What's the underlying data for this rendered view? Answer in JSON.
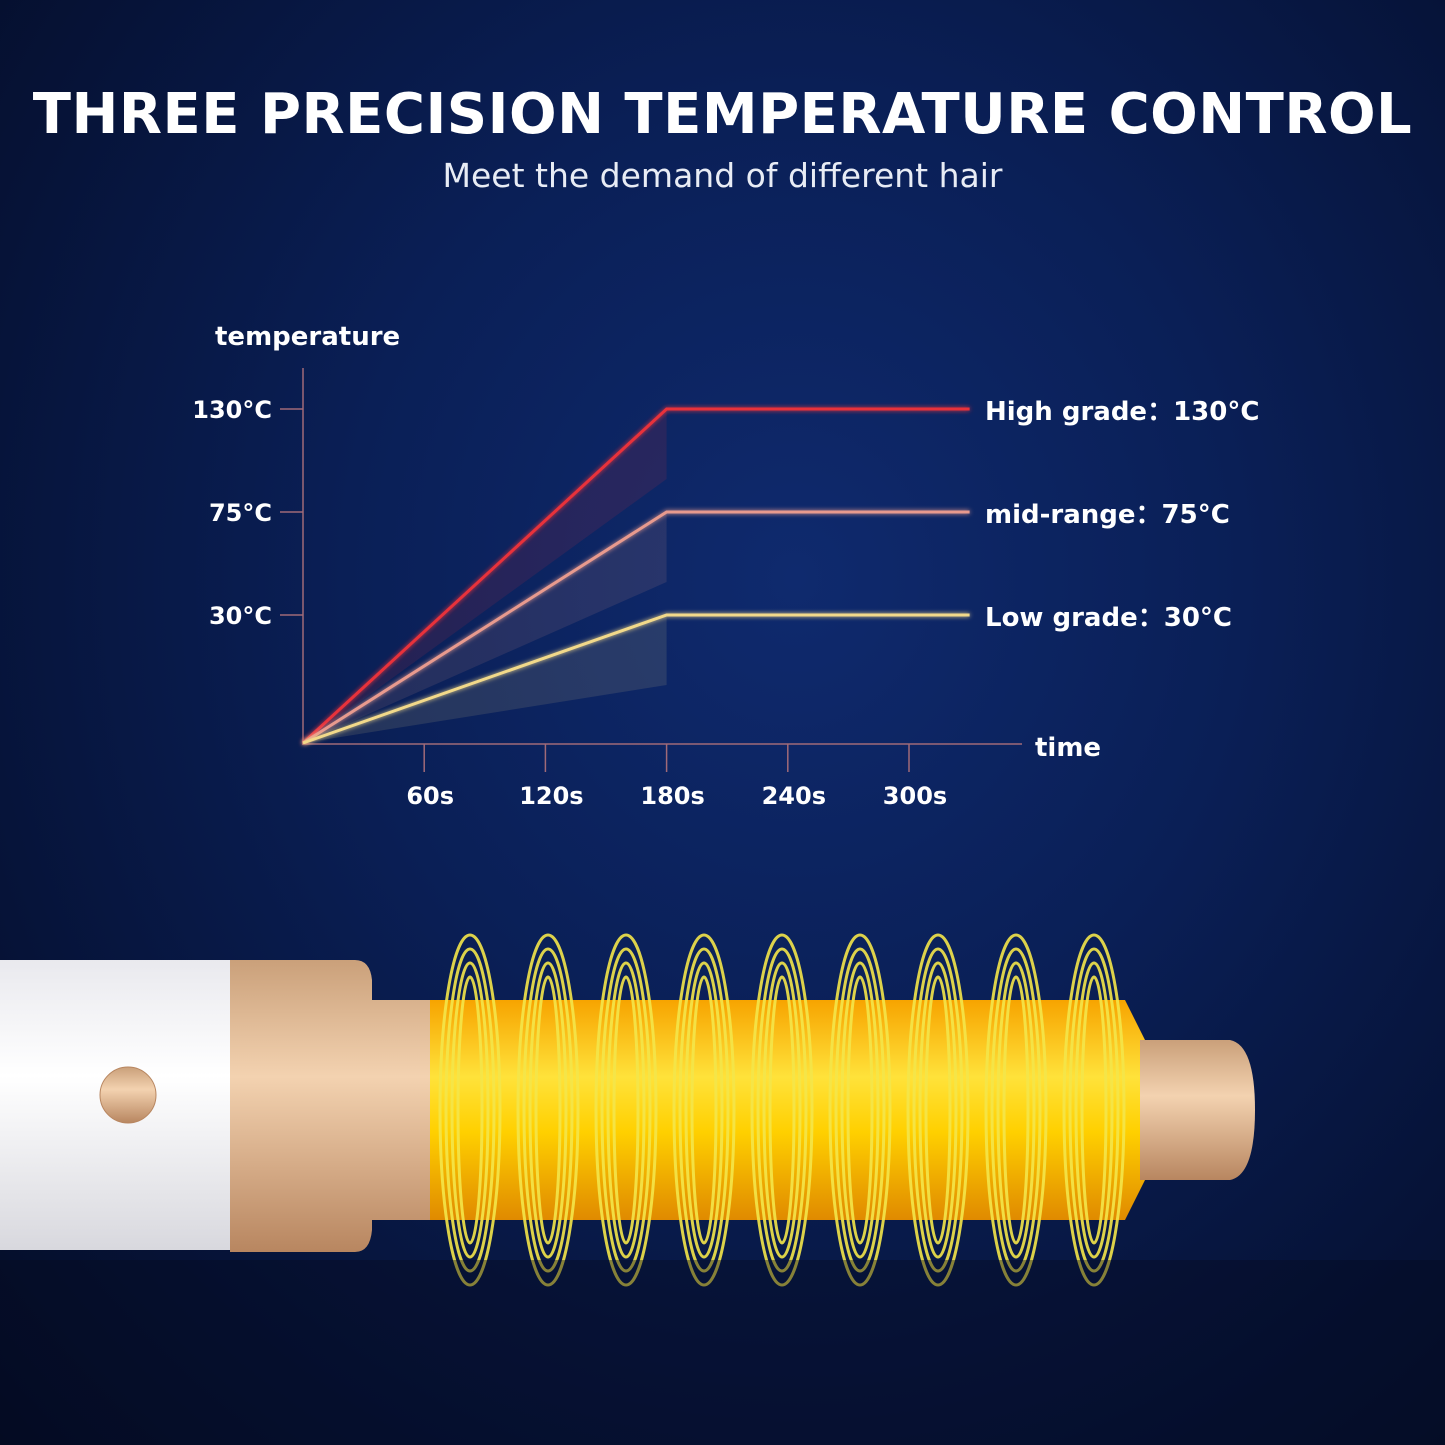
{
  "header": {
    "title": "THREE PRECISION TEMPERATURE CONTROL",
    "subtitle": "Meet the demand of different hair"
  },
  "chart_data": {
    "type": "line",
    "title": "",
    "xlabel": "time",
    "ylabel": "temperature",
    "x_ticks": [
      "60s",
      "120s",
      "180s",
      "240s",
      "300s"
    ],
    "x_tick_values": [
      60,
      120,
      180,
      240,
      300
    ],
    "y_ticks": [
      "130°C",
      "75°C",
      "30°C"
    ],
    "y_tick_values": [
      130,
      75,
      30
    ],
    "xlim": [
      0,
      360
    ],
    "ylim": [
      0,
      150
    ],
    "grid": false,
    "series": [
      {
        "name": "High grade：130°C",
        "color": "#e8303a",
        "points": [
          [
            0,
            0
          ],
          [
            180,
            130
          ],
          [
            330,
            130
          ]
        ]
      },
      {
        "name": "mid-range：75°C",
        "color": "#e89a8e",
        "points": [
          [
            0,
            0
          ],
          [
            180,
            75
          ],
          [
            330,
            75
          ]
        ]
      },
      {
        "name": "Low grade：30°C",
        "color": "#f2d98a",
        "points": [
          [
            0,
            0
          ],
          [
            180,
            30
          ],
          [
            330,
            30
          ]
        ]
      }
    ]
  },
  "colors": {
    "background": "#0a1f56",
    "axis": "#a06a78",
    "barrel": "#f5b800",
    "gold": "#d9a878"
  }
}
